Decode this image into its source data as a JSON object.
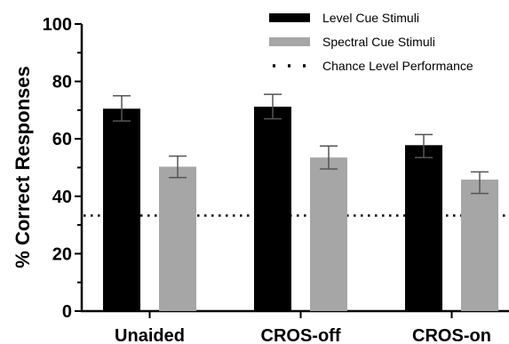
{
  "chart_data": {
    "type": "bar",
    "categories": [
      "Unaided",
      "CROS-off",
      "CROS-on"
    ],
    "series": [
      {
        "name": "Level Cue Stimuli",
        "color": "#000000",
        "values": [
          70.5,
          71.2,
          57.8
        ],
        "err_low": [
          66.2,
          67.0,
          53.5
        ],
        "err_high": [
          75.0,
          75.5,
          61.5
        ]
      },
      {
        "name": "Spectral Cue Stimuli",
        "color": "#a6a6a6",
        "values": [
          50.3,
          53.5,
          45.8
        ],
        "err_low": [
          46.5,
          49.5,
          41.0
        ],
        "err_high": [
          54.0,
          57.5,
          48.5
        ]
      }
    ],
    "reference_lines": [
      {
        "name": "Chance Level Performance",
        "value": 33.3,
        "style": "dotted"
      }
    ],
    "ylabel": "% Correct Responses",
    "xlabel": "",
    "ylim": [
      0,
      100
    ],
    "yticks": [
      0,
      20,
      40,
      60,
      80,
      100
    ],
    "grid": false,
    "legend_position": "top-right"
  }
}
